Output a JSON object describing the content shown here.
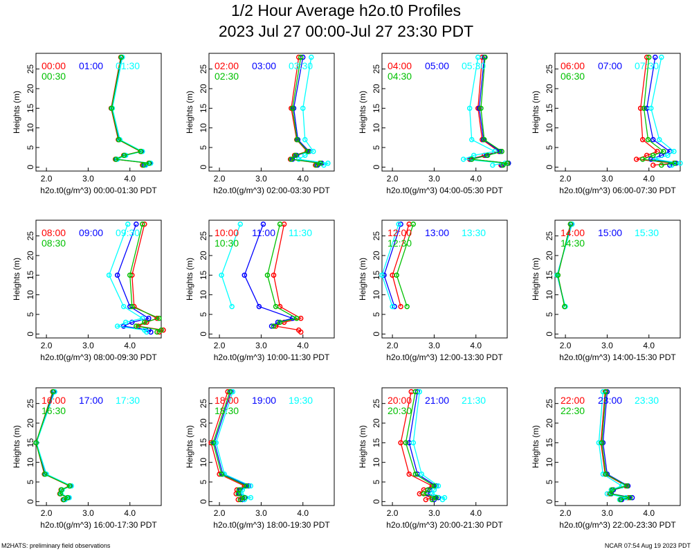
{
  "title": {
    "line1": "1/2 Hour Average h2o.t0 Profiles",
    "line2": "2023 Jul 27 00:00-Jul 27 23:30 PDT"
  },
  "footer": {
    "left": "M2HATS: preliminary field observations",
    "right": "NCAR 07:54 Aug 19 2023 PDT"
  },
  "colors": {
    "first": "#ff0000",
    "second": "#0000ff",
    "third": "#00ffff",
    "fourth": "#00c000"
  },
  "chart_data": [
    {
      "type": "line",
      "xlabel": "h2o.t0(g/m^3) 00:00-01:30 PDT",
      "ylabel": "Heights (m)",
      "xlim": [
        1.75,
        4.75
      ],
      "ylim": [
        -1,
        29
      ],
      "xticks": [
        "2.0",
        "3.0",
        "4.0"
      ],
      "yticks": [
        0,
        5,
        10,
        15,
        20,
        25
      ],
      "heights": [
        0.5,
        1,
        2,
        3,
        4,
        7,
        15,
        28
      ],
      "series": [
        {
          "name": "00:00",
          "values": [
            4.3,
            4.45,
            3.65,
            3.85,
            4.25,
            3.72,
            3.55,
            3.78
          ]
        },
        {
          "name": "01:00",
          "values": [
            4.35,
            4.48,
            3.68,
            3.88,
            4.28,
            3.74,
            3.56,
            3.8
          ]
        },
        {
          "name": "01:30",
          "values": [
            4.38,
            4.5,
            3.7,
            3.9,
            4.3,
            3.76,
            3.58,
            3.82
          ]
        },
        {
          "name": "00:30",
          "values": [
            4.32,
            4.46,
            3.66,
            3.86,
            4.26,
            3.73,
            3.56,
            3.79
          ]
        }
      ]
    },
    {
      "type": "line",
      "xlabel": "h2o.t0(g/m^3) 02:00-03:30 PDT",
      "ylabel": "Heights (m)",
      "xlim": [
        1.75,
        4.75
      ],
      "ylim": [
        -1,
        29
      ],
      "xticks": [
        "2.0",
        "3.0",
        "4.0"
      ],
      "yticks": [
        0,
        5,
        10,
        15,
        20,
        25
      ],
      "heights": [
        0.5,
        1,
        2,
        3,
        4,
        7,
        15,
        28
      ],
      "series": [
        {
          "name": "02:00",
          "values": [
            4.3,
            4.4,
            3.7,
            3.8,
            4.1,
            3.85,
            3.72,
            3.9
          ]
        },
        {
          "name": "03:00",
          "values": [
            4.35,
            4.45,
            3.75,
            3.85,
            4.15,
            3.88,
            3.78,
            4.0
          ]
        },
        {
          "name": "03:30",
          "values": [
            4.5,
            4.6,
            3.9,
            4.05,
            4.25,
            4.05,
            4.0,
            4.2
          ]
        },
        {
          "name": "02:30",
          "values": [
            4.32,
            4.42,
            3.72,
            3.82,
            4.12,
            3.86,
            3.75,
            3.95
          ]
        }
      ]
    },
    {
      "type": "line",
      "xlabel": "h2o.t0(g/m^3) 04:00-05:30 PDT",
      "ylabel": "Heights (m)",
      "xlim": [
        1.75,
        4.75
      ],
      "ylim": [
        -1,
        29
      ],
      "xticks": [
        "2.0",
        "3.0",
        "4.0"
      ],
      "yticks": [
        0,
        5,
        10,
        15,
        20,
        25
      ],
      "heights": [
        0.5,
        1,
        2,
        3,
        4,
        7,
        15,
        28
      ],
      "series": [
        {
          "name": "04:00",
          "values": [
            4.6,
            4.75,
            3.85,
            4.2,
            4.55,
            4.15,
            4.05,
            4.15
          ]
        },
        {
          "name": "05:00",
          "values": [
            4.62,
            4.78,
            3.88,
            4.25,
            4.58,
            4.18,
            4.08,
            4.2
          ]
        },
        {
          "name": "05:30",
          "values": [
            4.4,
            4.7,
            3.7,
            3.95,
            4.45,
            3.9,
            3.85,
            4.05
          ]
        },
        {
          "name": "04:30",
          "values": [
            4.65,
            4.76,
            3.9,
            4.28,
            4.62,
            4.2,
            4.12,
            4.22
          ]
        }
      ]
    },
    {
      "type": "line",
      "xlabel": "h2o.t0(g/m^3) 06:00-07:30 PDT",
      "ylabel": "Heights (m)",
      "xlim": [
        1.75,
        4.75
      ],
      "ylim": [
        -1,
        29
      ],
      "xticks": [
        "2.0",
        "3.0",
        "4.0"
      ],
      "yticks": [
        0,
        5,
        10,
        15,
        20,
        25
      ],
      "heights": [
        0.5,
        1,
        2,
        3,
        4,
        7,
        15,
        28
      ],
      "series": [
        {
          "name": "06:00",
          "values": [
            4.1,
            4.6,
            3.7,
            3.95,
            4.2,
            3.85,
            3.8,
            3.95
          ]
        },
        {
          "name": "07:00",
          "values": [
            4.5,
            4.65,
            4.05,
            4.3,
            4.5,
            4.1,
            3.95,
            4.15
          ]
        },
        {
          "name": "07:30",
          "values": [
            4.55,
            4.75,
            4.15,
            4.45,
            4.6,
            4.25,
            4.05,
            4.3
          ]
        },
        {
          "name": "06:30",
          "values": [
            4.3,
            4.62,
            3.85,
            4.1,
            4.35,
            3.98,
            3.88,
            4.0
          ]
        }
      ]
    },
    {
      "type": "line",
      "xlabel": "h2o.t0(g/m^3) 08:00-09:30 PDT",
      "ylabel": "Heights (m)",
      "xlim": [
        1.75,
        4.75
      ],
      "ylim": [
        -1,
        29
      ],
      "xticks": [
        "2.0",
        "3.0",
        "4.0"
      ],
      "yticks": [
        0,
        5,
        10,
        15,
        20,
        25
      ],
      "heights": [
        0.5,
        1,
        2,
        3,
        4,
        7,
        15,
        28
      ],
      "series": [
        {
          "name": "08:00",
          "values": [
            4.7,
            4.8,
            4.2,
            4.4,
            4.65,
            4.1,
            4.05,
            4.35
          ]
        },
        {
          "name": "09:00",
          "values": [
            4.5,
            4.45,
            3.85,
            4.05,
            4.45,
            4.0,
            3.7,
            4.15
          ]
        },
        {
          "name": "09:30",
          "values": [
            4.4,
            4.35,
            3.7,
            3.9,
            4.3,
            3.85,
            3.5,
            3.95
          ]
        },
        {
          "name": "08:30",
          "values": [
            4.65,
            4.75,
            4.15,
            4.35,
            4.7,
            4.05,
            4.0,
            4.3
          ]
        }
      ]
    },
    {
      "type": "line",
      "xlabel": "h2o.t0(g/m^3) 10:00-11:30 PDT",
      "ylabel": "Heights (m)",
      "xlim": [
        1.75,
        4.75
      ],
      "ylim": [
        -1,
        29
      ],
      "xticks": [
        "2.0",
        "3.0",
        "4.0"
      ],
      "yticks": [
        0,
        5,
        10,
        15,
        20,
        25
      ],
      "heights": [
        0.5,
        1,
        2,
        3,
        4,
        7,
        15,
        28
      ],
      "series": [
        {
          "name": "10:00",
          "values": [
            3.95,
            3.9,
            3.35,
            3.55,
            3.95,
            3.45,
            3.3,
            3.55
          ]
        },
        {
          "name": "11:00",
          "values": [
            null,
            null,
            3.25,
            3.4,
            3.75,
            2.95,
            2.6,
            3.05
          ]
        },
        {
          "name": "11:30",
          "values": [
            null,
            null,
            null,
            null,
            null,
            2.3,
            2.05,
            2.5
          ]
        },
        {
          "name": "10:30",
          "values": [
            null,
            null,
            3.3,
            3.45,
            3.85,
            3.35,
            3.15,
            3.45
          ]
        }
      ]
    },
    {
      "type": "line",
      "xlabel": "h2o.t0(g/m^3) 12:00-13:30 PDT",
      "ylabel": "Heights (m)",
      "xlim": [
        1.75,
        4.75
      ],
      "ylim": [
        -1,
        29
      ],
      "xticks": [
        "2.0",
        "3.0",
        "4.0"
      ],
      "yticks": [
        0,
        5,
        10,
        15,
        20,
        25
      ],
      "heights": [
        7,
        15,
        28
      ],
      "series": [
        {
          "name": "12:00",
          "values": [
            2.2,
            2.0,
            2.4
          ]
        },
        {
          "name": "13:00",
          "values": [
            2.05,
            1.8,
            2.2
          ]
        },
        {
          "name": "13:30",
          "values": [
            2.0,
            1.75,
            2.15
          ]
        },
        {
          "name": "12:30",
          "values": [
            2.35,
            2.1,
            2.5
          ]
        }
      ]
    },
    {
      "type": "line",
      "xlabel": "h2o.t0(g/m^3) 14:00-15:30 PDT",
      "ylabel": "Heights (m)",
      "xlim": [
        1.75,
        4.75
      ],
      "ylim": [
        -1,
        29
      ],
      "xticks": [
        "2.0",
        "3.0",
        "4.0"
      ],
      "yticks": [
        0,
        5,
        10,
        15,
        20,
        25
      ],
      "heights": [
        7,
        15,
        28
      ],
      "series": [
        {
          "name": "14:00",
          "values": [
            1.98,
            1.82,
            2.12
          ]
        },
        {
          "name": "15:00",
          "values": [
            1.99,
            1.8,
            2.15
          ]
        },
        {
          "name": "15:30",
          "values": [
            2.0,
            1.8,
            2.16
          ]
        },
        {
          "name": "14:30",
          "values": [
            1.98,
            1.82,
            2.12
          ]
        }
      ]
    },
    {
      "type": "line",
      "xlabel": "h2o.t0(g/m^3) 16:00-17:30 PDT",
      "ylabel": "Heights (m)",
      "xlim": [
        1.75,
        4.75
      ],
      "ylim": [
        -1,
        29
      ],
      "xticks": [
        "2.0",
        "3.0",
        "4.0"
      ],
      "yticks": [
        0,
        5,
        10,
        15,
        20,
        25
      ],
      "heights": [
        0.5,
        1,
        2,
        3,
        4,
        7,
        15,
        28
      ],
      "series": [
        {
          "name": "16:00",
          "values": [
            2.4,
            2.5,
            2.32,
            2.35,
            2.55,
            1.95,
            1.75,
            2.15
          ]
        },
        {
          "name": "17:00",
          "values": [
            2.42,
            2.52,
            2.34,
            2.37,
            2.57,
            1.97,
            1.76,
            2.18
          ]
        },
        {
          "name": "17:30",
          "values": [
            2.45,
            2.55,
            2.35,
            2.38,
            2.6,
            2.0,
            1.76,
            2.2
          ]
        },
        {
          "name": "16:30",
          "values": [
            2.41,
            2.51,
            2.33,
            2.36,
            2.56,
            1.96,
            1.75,
            2.16
          ]
        }
      ]
    },
    {
      "type": "line",
      "xlabel": "h2o.t0(g/m^3) 18:00-19:30 PDT",
      "ylabel": "Heights (m)",
      "xlim": [
        1.75,
        4.75
      ],
      "ylim": [
        -1,
        29
      ],
      "xticks": [
        "2.0",
        "3.0",
        "4.0"
      ],
      "yticks": [
        0,
        5,
        10,
        15,
        20,
        25
      ],
      "heights": [
        0.5,
        1,
        2,
        3,
        4,
        7,
        15,
        28
      ],
      "series": [
        {
          "name": "18:00",
          "values": [
            2.45,
            2.55,
            2.4,
            2.42,
            2.6,
            2.0,
            1.8,
            2.2
          ]
        },
        {
          "name": "19:00",
          "values": [
            2.55,
            2.62,
            2.48,
            2.5,
            2.7,
            2.08,
            1.88,
            2.28
          ]
        },
        {
          "name": "19:30",
          "values": [
            2.6,
            2.75,
            2.52,
            2.55,
            2.75,
            2.12,
            1.92,
            2.32
          ]
        },
        {
          "name": "18:30",
          "values": [
            2.5,
            2.6,
            2.45,
            2.47,
            2.65,
            2.05,
            1.85,
            2.25
          ]
        }
      ]
    },
    {
      "type": "line",
      "xlabel": "h2o.t0(g/m^3) 20:00-21:30 PDT",
      "ylabel": "Heights (m)",
      "xlim": [
        1.75,
        4.75
      ],
      "ylim": [
        -1,
        29
      ],
      "xticks": [
        "2.0",
        "3.0",
        "4.0"
      ],
      "yticks": [
        0,
        5,
        10,
        15,
        20,
        25
      ],
      "heights": [
        0.5,
        1,
        2,
        3,
        4,
        7,
        15,
        28
      ],
      "series": [
        {
          "name": "20:00",
          "values": [
            2.8,
            2.95,
            2.65,
            2.75,
            2.95,
            2.4,
            2.2,
            2.45
          ]
        },
        {
          "name": "21:00",
          "values": [
            3.0,
            3.1,
            2.85,
            2.9,
            3.05,
            2.6,
            2.4,
            2.6
          ]
        },
        {
          "name": "21:30",
          "values": [
            3.2,
            3.25,
            2.95,
            3.0,
            3.1,
            2.7,
            2.5,
            2.65
          ]
        },
        {
          "name": "20:30",
          "values": [
            2.95,
            3.05,
            2.75,
            2.85,
            3.0,
            2.55,
            2.32,
            2.55
          ]
        }
      ]
    },
    {
      "type": "line",
      "xlabel": "h2o.t0(g/m^3) 22:00-23:30 PDT",
      "ylabel": "Heights (m)",
      "xlim": [
        1.75,
        4.75
      ],
      "ylim": [
        -1,
        29
      ],
      "xticks": [
        "2.0",
        "3.0",
        "4.0"
      ],
      "yticks": [
        0,
        5,
        10,
        15,
        20,
        25
      ],
      "heights": [
        0.5,
        1,
        2,
        3,
        4,
        7,
        15,
        28
      ],
      "series": [
        {
          "name": "22:00",
          "values": [
            3.3,
            3.5,
            3.05,
            3.1,
            3.45,
            2.95,
            2.85,
            2.95
          ]
        },
        {
          "name": "23:00",
          "values": [
            3.35,
            3.6,
            3.1,
            3.15,
            3.5,
            3.0,
            2.9,
            3.0
          ]
        },
        {
          "name": "23:30",
          "values": [
            3.3,
            3.45,
            3.0,
            3.1,
            3.35,
            2.9,
            2.8,
            2.9
          ]
        },
        {
          "name": "22:30",
          "values": [
            3.32,
            3.55,
            3.08,
            3.12,
            3.48,
            2.97,
            2.87,
            2.97
          ]
        }
      ]
    }
  ]
}
